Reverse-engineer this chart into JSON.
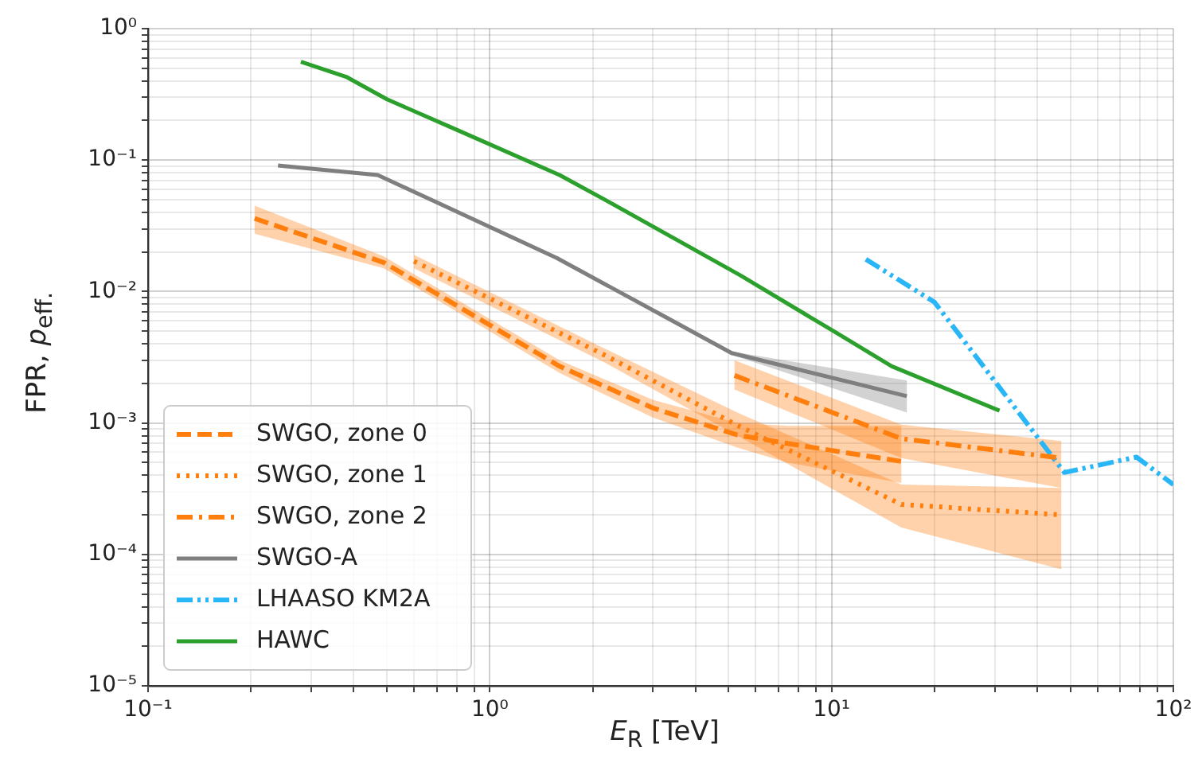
{
  "chart_data": {
    "type": "line",
    "xlabel": "E$_{R}$ [TeV]",
    "ylabel": "FPR, p$_{eff.}$",
    "log": "xy",
    "grid": true,
    "legend": "bottom left",
    "xlim": [
      0.1,
      100
    ],
    "ylim": [
      1e-05,
      1
    ],
    "xticks": [
      {
        "value": 0.1,
        "label": "10⁻¹"
      },
      {
        "value": 0.2,
        "label": null
      },
      {
        "value": 0.3,
        "label": null
      },
      {
        "value": 0.4,
        "label": null
      },
      {
        "value": 0.5,
        "label": null
      },
      {
        "value": 0.6,
        "label": null
      },
      {
        "value": 0.7,
        "label": null
      },
      {
        "value": 0.8,
        "label": null
      },
      {
        "value": 0.9,
        "label": null
      },
      {
        "value": 1,
        "label": "10⁰"
      },
      {
        "value": 2,
        "label": null
      },
      {
        "value": 3,
        "label": null
      },
      {
        "value": 4,
        "label": null
      },
      {
        "value": 5,
        "label": null
      },
      {
        "value": 6,
        "label": null
      },
      {
        "value": 7,
        "label": null
      },
      {
        "value": 8,
        "label": null
      },
      {
        "value": 9,
        "label": null
      },
      {
        "value": 10,
        "label": "10¹"
      },
      {
        "value": 20,
        "label": null
      },
      {
        "value": 30,
        "label": null
      },
      {
        "value": 40,
        "label": null
      },
      {
        "value": 50,
        "label": null
      },
      {
        "value": 60,
        "label": null
      },
      {
        "value": 70,
        "label": null
      },
      {
        "value": 80,
        "label": null
      },
      {
        "value": 90,
        "label": null
      },
      {
        "value": 100,
        "label": "10²"
      }
    ],
    "yticks": [
      {
        "value": 1e-05,
        "label": "10⁻⁵"
      },
      {
        "value": 2e-05,
        "label": null
      },
      {
        "value": 3e-05,
        "label": null
      },
      {
        "value": 4e-05,
        "label": null
      },
      {
        "value": 5e-05,
        "label": null
      },
      {
        "value": 6e-05,
        "label": null
      },
      {
        "value": 7e-05,
        "label": null
      },
      {
        "value": 8e-05,
        "label": null
      },
      {
        "value": 9e-05,
        "label": null
      },
      {
        "value": 0.0001,
        "label": "10⁻⁴"
      },
      {
        "value": 0.0002,
        "label": null
      },
      {
        "value": 0.0003,
        "label": null
      },
      {
        "value": 0.0004,
        "label": null
      },
      {
        "value": 0.0005,
        "label": null
      },
      {
        "value": 0.0006,
        "label": null
      },
      {
        "value": 0.0007,
        "label": null
      },
      {
        "value": 0.0008,
        "label": null
      },
      {
        "value": 0.0009,
        "label": null
      },
      {
        "value": 0.001,
        "label": "10⁻³"
      },
      {
        "value": 0.002,
        "label": null
      },
      {
        "value": 0.003,
        "label": null
      },
      {
        "value": 0.004,
        "label": null
      },
      {
        "value": 0.005,
        "label": null
      },
      {
        "value": 0.006,
        "label": null
      },
      {
        "value": 0.007,
        "label": null
      },
      {
        "value": 0.008,
        "label": null
      },
      {
        "value": 0.009,
        "label": null
      },
      {
        "value": 0.01,
        "label": "10⁻²"
      },
      {
        "value": 0.02,
        "label": null
      },
      {
        "value": 0.03,
        "label": null
      },
      {
        "value": 0.04,
        "label": null
      },
      {
        "value": 0.05,
        "label": null
      },
      {
        "value": 0.06,
        "label": null
      },
      {
        "value": 0.07,
        "label": null
      },
      {
        "value": 0.08,
        "label": null
      },
      {
        "value": 0.09,
        "label": null
      },
      {
        "value": 0.1,
        "label": "10⁻¹"
      },
      {
        "value": 0.2,
        "label": null
      },
      {
        "value": 0.3,
        "label": null
      },
      {
        "value": 0.4,
        "label": null
      },
      {
        "value": 0.5,
        "label": null
      },
      {
        "value": 0.6,
        "label": null
      },
      {
        "value": 0.7,
        "label": null
      },
      {
        "value": 0.8,
        "label": null
      },
      {
        "value": 0.9,
        "label": null
      },
      {
        "value": 1,
        "label": "10⁰"
      }
    ],
    "series": [
      {
        "name": "SWGO, zone 0",
        "color": "#ff7f0e",
        "line_style": "dashed",
        "x": [
          0.205,
          0.49,
          1.6,
          3.0,
          5.3,
          7.4,
          16
        ],
        "values": [
          0.036,
          0.0166,
          0.0027,
          0.0013,
          0.00081,
          0.0007,
          0.00051
        ],
        "lower": [
          0.0275,
          0.015,
          0.0024,
          0.0011,
          0.00065,
          0.0005,
          0.00035
        ],
        "upper": [
          0.045,
          0.0185,
          0.003,
          0.0015,
          0.001,
          0.00095,
          0.00095
        ]
      },
      {
        "name": "SWGO, zone 1",
        "color": "#ff7f0e",
        "line_style": "dotted",
        "x": [
          0.6,
          2.16,
          5.3,
          16,
          47
        ],
        "values": [
          0.017,
          0.0033,
          0.00096,
          0.00024,
          0.0002
        ],
        "lower": [
          0.015,
          0.0029,
          0.0008,
          0.00016,
          7.7e-05
        ],
        "upper": [
          0.019,
          0.0037,
          0.0012,
          0.00034,
          0.00032
        ]
      },
      {
        "name": "SWGO, zone 2",
        "color": "#ff7f0e",
        "line_style": "dashdot",
        "x": [
          5.2,
          16,
          47
        ],
        "values": [
          0.0023,
          0.00076,
          0.00054
        ],
        "lower": [
          0.0018,
          0.00054,
          0.00032
        ],
        "upper": [
          0.003,
          0.00097,
          0.00073
        ]
      },
      {
        "name": "SWGO-A",
        "color": "#7f7f7f",
        "line_style": "solid",
        "x": [
          0.24,
          0.47,
          1.57,
          3.3,
          5.1,
          16.6
        ],
        "values": [
          0.091,
          0.077,
          0.018,
          0.0063,
          0.0034,
          0.0016
        ],
        "lower": [
          null,
          null,
          null,
          null,
          0.0033,
          0.0012
        ],
        "upper": [
          null,
          null,
          null,
          null,
          0.0035,
          0.0021
        ]
      },
      {
        "name": "LHAASO KM2A",
        "color": "#29b6f6",
        "line_style": "dashdotdot",
        "x": [
          12.6,
          20,
          48,
          78,
          100
        ],
        "values": [
          0.0176,
          0.0083,
          0.00042,
          0.00055,
          0.00034
        ]
      },
      {
        "name": "HAWC",
        "color": "#2ca02c",
        "line_style": "solid",
        "x": [
          0.28,
          0.38,
          0.5,
          0.8,
          1.6,
          2.2,
          5.4,
          10,
          15,
          31
        ],
        "values": [
          0.56,
          0.43,
          0.29,
          0.17,
          0.077,
          0.049,
          0.0133,
          0.0051,
          0.0027,
          0.00124
        ]
      }
    ]
  }
}
